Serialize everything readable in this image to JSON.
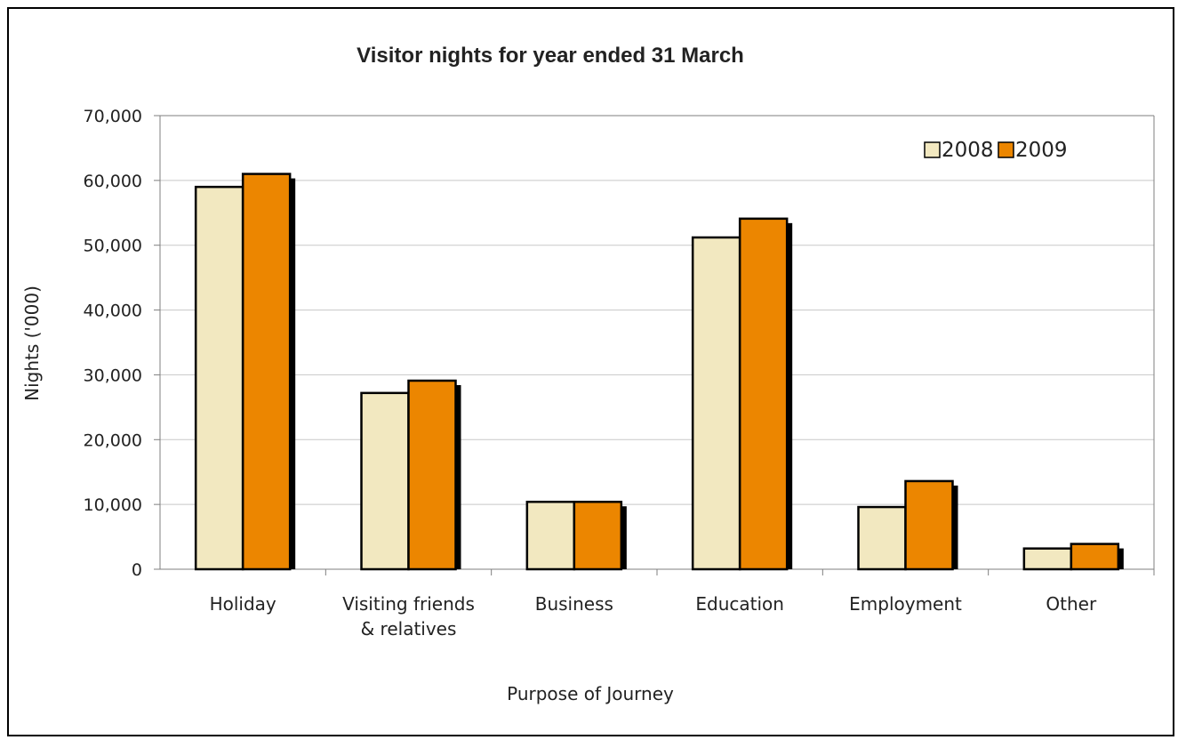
{
  "chart_data": {
    "type": "bar",
    "title": "Visitor nights for year ended 31 March",
    "xlabel": "Purpose of Journey",
    "ylabel": "Nights ('000)",
    "categories": [
      [
        "Holiday"
      ],
      [
        "Visiting friends",
        "& relatives"
      ],
      [
        "Business"
      ],
      [
        "Education"
      ],
      [
        "Employment"
      ],
      [
        "Other"
      ]
    ],
    "series": [
      {
        "name": "2008",
        "color": "#f2e8c0",
        "values": [
          59000,
          27200,
          10400,
          51200,
          9600,
          3200
        ]
      },
      {
        "name": "2009",
        "color": "#ec8600",
        "values": [
          61000,
          29100,
          10400,
          54100,
          13600,
          3900
        ]
      }
    ],
    "ylim": [
      0,
      70000
    ],
    "yticks": [
      0,
      10000,
      20000,
      30000,
      40000,
      50000,
      60000,
      70000
    ],
    "ytick_labels": [
      "0",
      "10,000",
      "20,000",
      "30,000",
      "40,000",
      "50,000",
      "60,000",
      "70,000"
    ],
    "grid": true,
    "legend_position": "top-right"
  }
}
